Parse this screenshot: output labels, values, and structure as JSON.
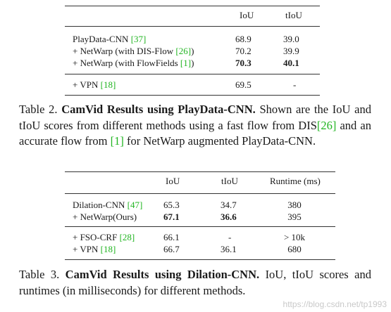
{
  "table2": {
    "headers": [
      "",
      "IoU",
      "tIoU"
    ],
    "group1": [
      {
        "method": "PlayData-CNN ",
        "cite": "[37]",
        "iou": "68.9",
        "tiou": "39.0"
      },
      {
        "method": "+ NetWarp  (with DIS-Flow ",
        "cite": "[26]",
        "suffix": ")",
        "iou": "70.2",
        "tiou": "39.9"
      },
      {
        "method": "+ NetWarp  (with FlowFields ",
        "cite": "[1]",
        "suffix": ")",
        "iou": "70.3",
        "tiou": "40.1"
      }
    ],
    "group2": [
      {
        "method": "+ VPN ",
        "cite": "[18]",
        "iou": "69.5",
        "tiou": "-"
      }
    ]
  },
  "caption2": {
    "label": "Table 2. ",
    "title": "CamVid Results using PlayData-CNN.",
    "text1": " Shown are the IoU and tIoU scores from different methods using a fast flow from DIS",
    "cite1": "[26]",
    "text2": " and an accurate flow from ",
    "cite2": "[1]",
    "text3": " for NetWarp augmented PlayData-CNN."
  },
  "table3": {
    "headers": [
      "",
      "IoU",
      "tIoU",
      "Runtime (ms)"
    ],
    "group1": [
      {
        "method": "Dilation-CNN ",
        "cite": "[47]",
        "iou": "65.3",
        "tiou": "34.7",
        "runtime": "380"
      },
      {
        "method": "+ NetWarp(Ours)",
        "iou": "67.1",
        "tiou": "36.6",
        "runtime": "395"
      }
    ],
    "group2": [
      {
        "method": "+ FSO-CRF ",
        "cite": "[28]",
        "iou": "66.1",
        "tiou": "-",
        "runtime": "> 10k"
      },
      {
        "method": "+ VPN ",
        "cite": "[18]",
        "iou": "66.7",
        "tiou": "36.1",
        "runtime": "680"
      }
    ]
  },
  "caption3": {
    "label": "Table 3. ",
    "title": "CamVid Results using Dilation-CNN.",
    "text1": " IoU, tIoU scores and runtimes (in milliseconds) for different methods."
  },
  "watermark": "https://blog.csdn.net/tp1993"
}
